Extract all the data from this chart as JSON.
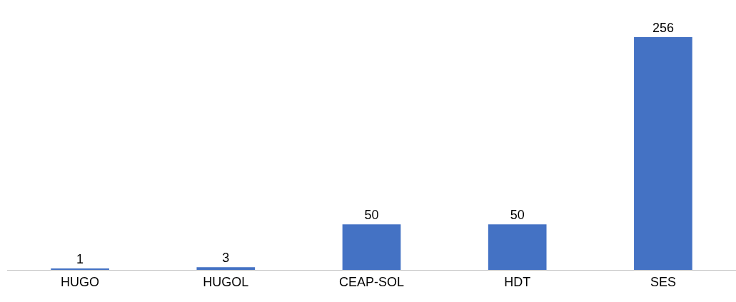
{
  "chart_data": {
    "type": "bar",
    "categories": [
      "HUGO",
      "HUGOL",
      "CEAP-SOL",
      "HDT",
      "SES"
    ],
    "values": [
      1,
      3,
      50,
      50,
      256
    ],
    "color": "#4472c4",
    "data_labels": true
  }
}
